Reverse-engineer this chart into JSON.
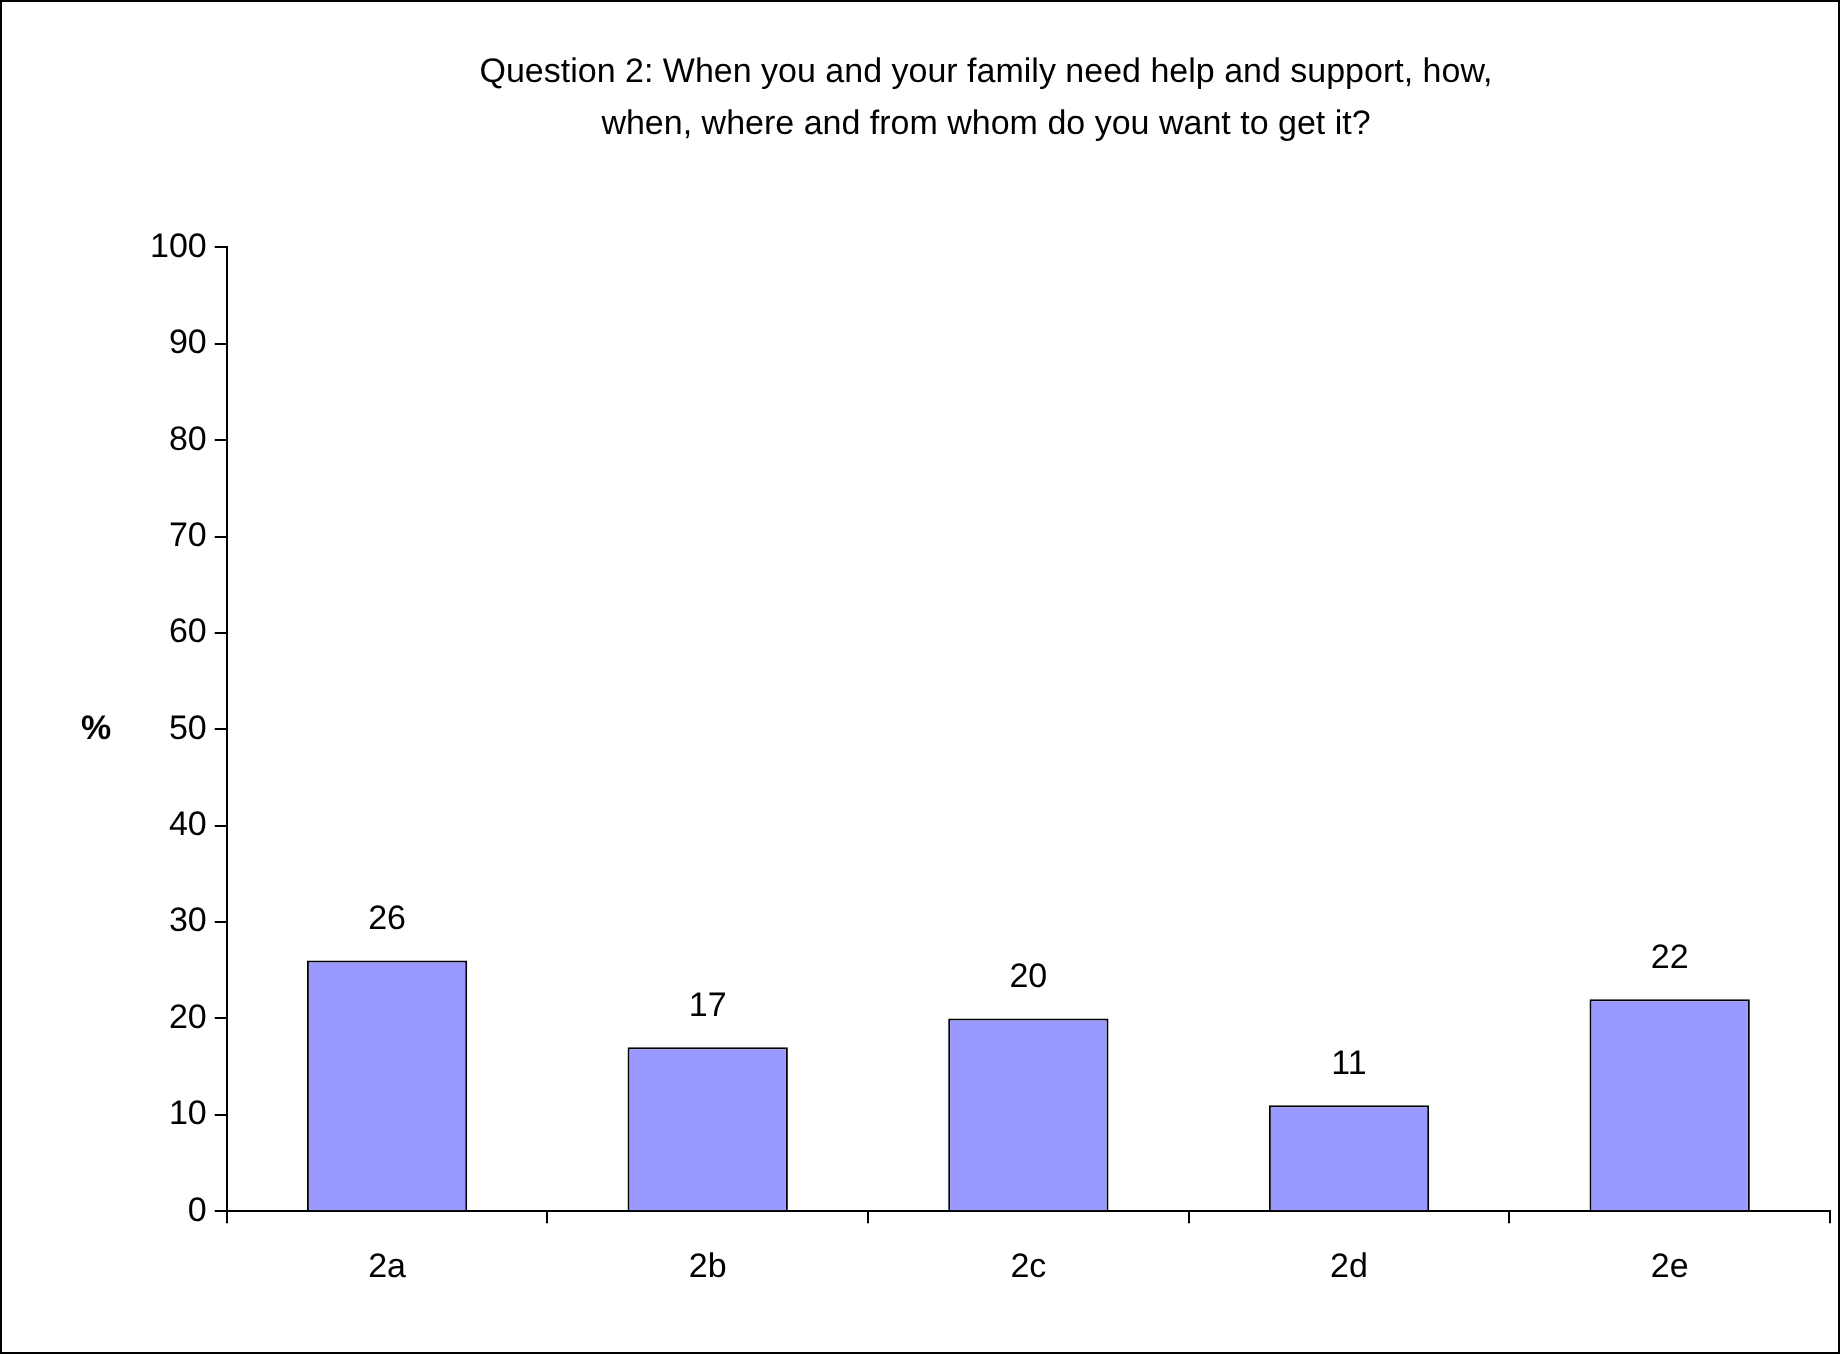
{
  "chart_data": {
    "type": "bar",
    "title": "Question 2: When you and your family need help and support, how, when, where and from whom do you want to get it?",
    "ylabel": "%",
    "categories": [
      "2a",
      "2b",
      "2c",
      "2d",
      "2e"
    ],
    "series": [
      {
        "color": "#9999ff",
        "values": [
          26,
          17,
          20,
          11,
          22
        ]
      }
    ],
    "ylim": [
      0,
      100
    ],
    "yticks": [
      0,
      10,
      20,
      30,
      40,
      50,
      60,
      70,
      80,
      90,
      100
    ],
    "data_labels": true,
    "legend": false
  }
}
